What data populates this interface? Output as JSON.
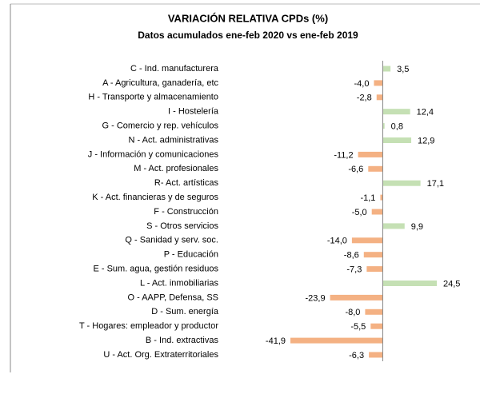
{
  "chart_data": {
    "type": "bar",
    "orientation": "horizontal",
    "title": "VARIACIÓN RELATIVA CPDs (%)",
    "subtitle": "Datos acumulados ene-feb 2020 vs ene-feb 2019",
    "categories": [
      "C - Ind. manufacturera",
      "A - Agricultura, ganadería, etc",
      "H - Transporte y almacenamiento",
      "I - Hostelería",
      "G - Comercio y rep. vehículos",
      "N - Act. administrativas",
      "J - Información y comunicaciones",
      "M - Act. profesionales",
      "R-  Act. artísticas",
      "K - Act. financieras y de seguros",
      "F - Construcción",
      "S - Otros servicios",
      "Q - Sanidad y serv. soc.",
      "P - Educación",
      "E - Sum. agua, gestión residuos",
      "L - Act. inmobiliarias",
      "O - AAPP, Defensa, SS",
      "D - Sum. energía",
      "T - Hogares: empleador y productor",
      "B - Ind. extractivas",
      "U - Act. Org. Extraterritoriales"
    ],
    "values": [
      3.5,
      -4.0,
      -2.8,
      12.4,
      0.8,
      12.9,
      -11.2,
      -6.6,
      17.1,
      -1.1,
      -5.0,
      9.9,
      -14.0,
      -8.6,
      -7.3,
      24.5,
      -23.9,
      -8.0,
      -5.5,
      -41.9,
      -6.3
    ],
    "value_labels": [
      "3,5",
      "-4,0",
      "-2,8",
      "12,4",
      "0,8",
      "12,9",
      "-11,2",
      "-6,6",
      "17,1",
      "-1,1",
      "-5,0",
      "9,9",
      "-14,0",
      "-8,6",
      "-7,3",
      "24,5",
      "-23,9",
      "-8,0",
      "-5,5",
      "-41,9",
      "-6,3"
    ],
    "positive_color": "#c5e0b4",
    "negative_color": "#f4b183"
  }
}
